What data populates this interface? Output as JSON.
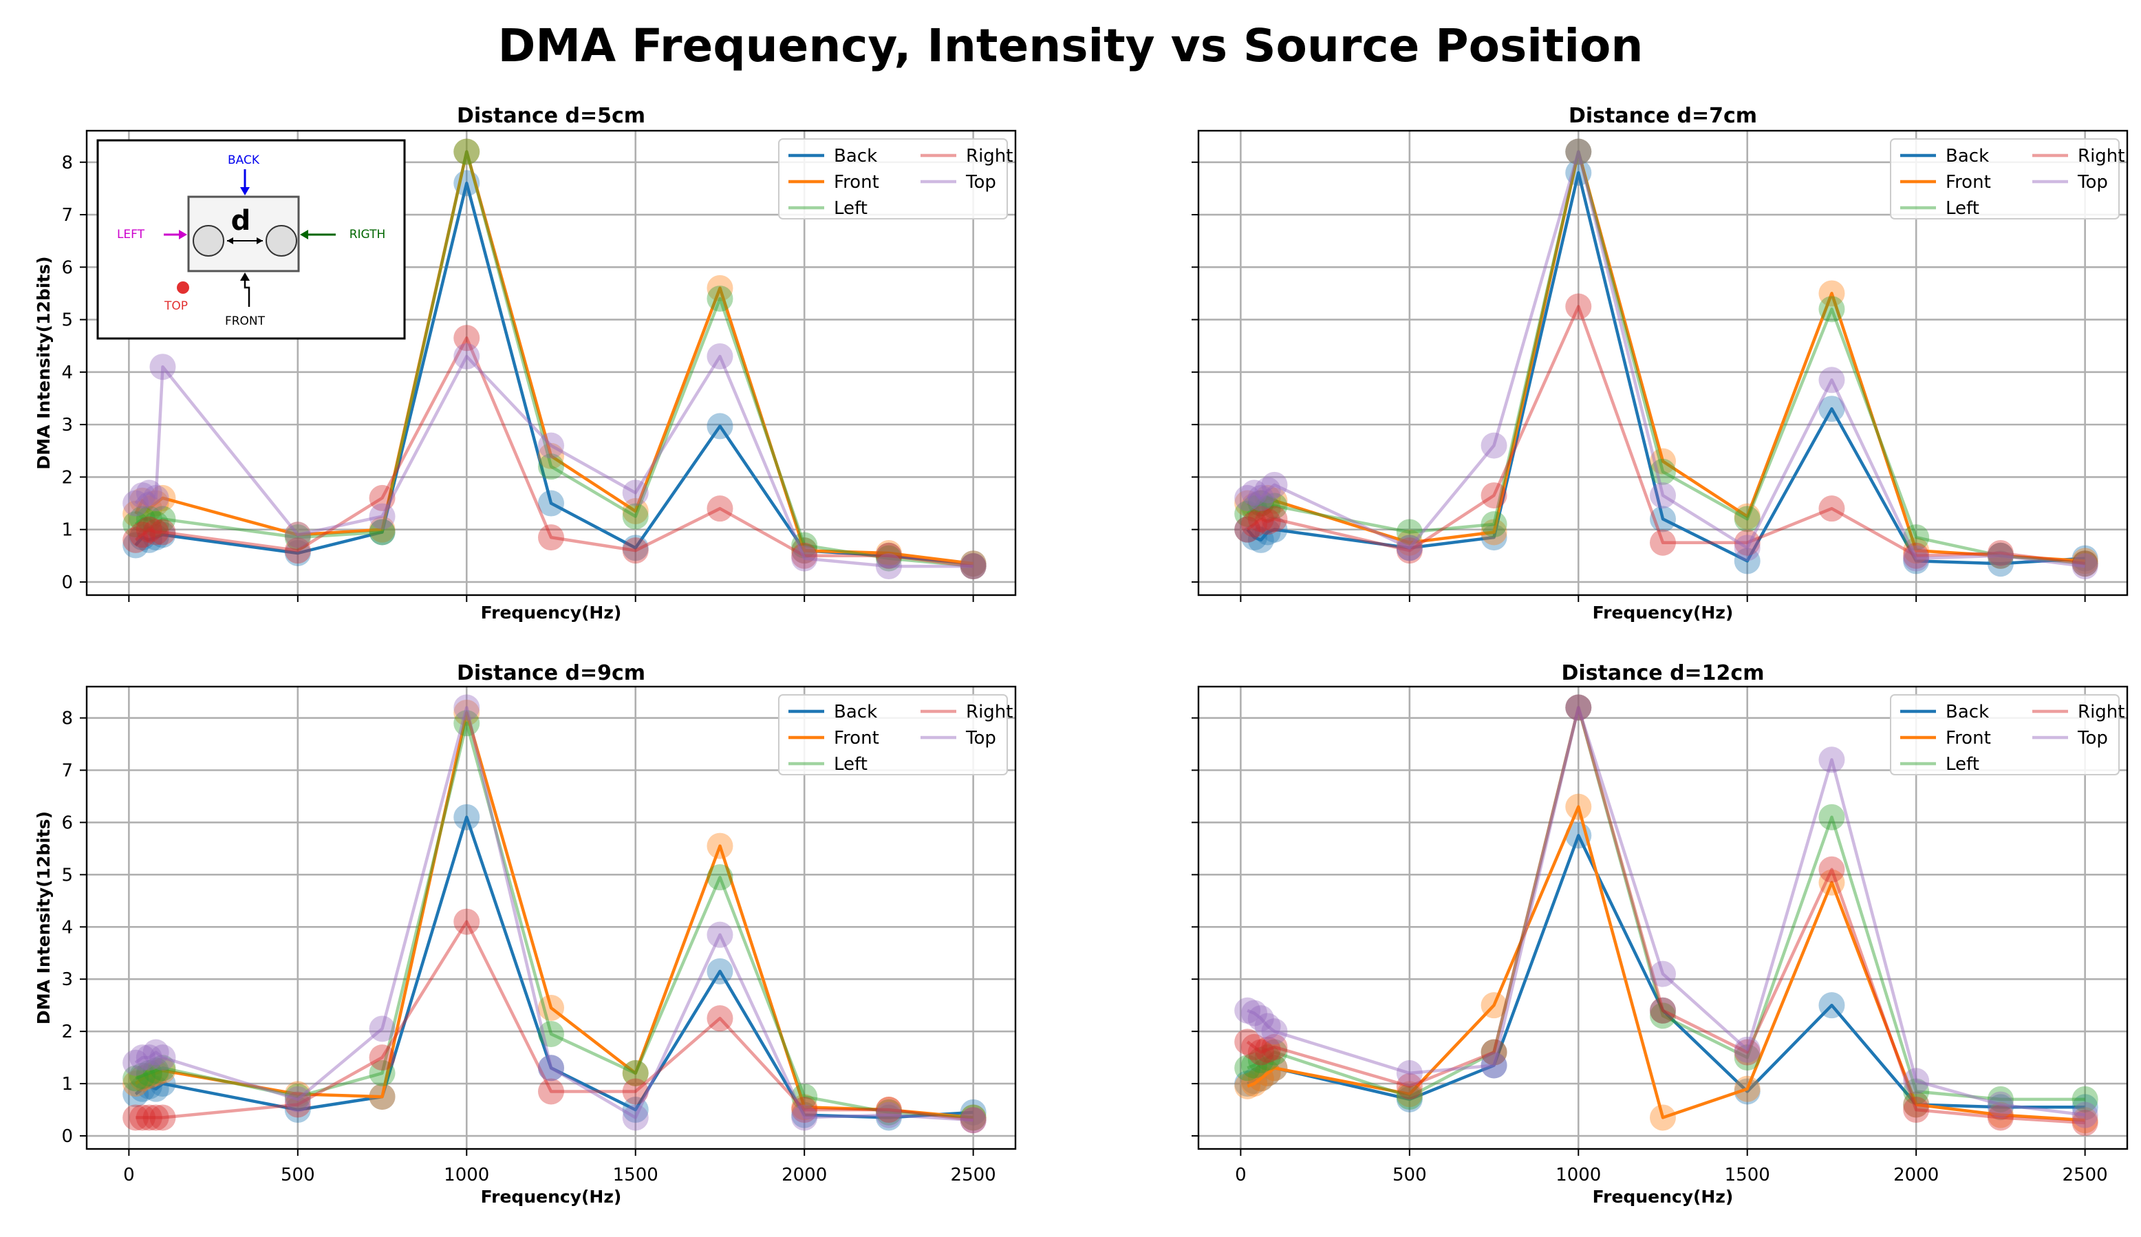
{
  "figure": {
    "title": "DMA Frequency, Intensity vs Source Position"
  },
  "series_colors": {
    "Back": "#1f77b4",
    "Front": "#ff7f0e",
    "Left": "#2ca02c",
    "Right": "#d62728",
    "Top": "#9467bd"
  },
  "chart_data": [
    {
      "type": "line",
      "title": "Distance d=5cm",
      "xlabel": "Frequency(Hz)",
      "ylabel": "DMA Intensity(12bits)",
      "xlim": [
        -125,
        2625
      ],
      "ylim": [
        -0.25,
        8.6
      ],
      "xticks": [
        0,
        500,
        1000,
        1500,
        2000,
        2500
      ],
      "yticks": [
        0,
        1,
        2,
        3,
        4,
        5,
        6,
        7,
        8
      ],
      "x": [
        20,
        40,
        60,
        80,
        100,
        500,
        750,
        1000,
        1250,
        1500,
        1750,
        2000,
        2250,
        2500
      ],
      "series": [
        {
          "name": "Back",
          "values": [
            0.7,
            0.85,
            0.8,
            0.85,
            0.9,
            0.55,
            0.95,
            7.6,
            1.5,
            0.65,
            2.97,
            0.6,
            0.5,
            0.35
          ]
        },
        {
          "name": "Front",
          "values": [
            1.3,
            1.55,
            1.4,
            1.5,
            1.6,
            0.9,
            1.0,
            8.2,
            2.4,
            1.35,
            5.6,
            0.6,
            0.55,
            0.35
          ]
        },
        {
          "name": "Left",
          "values": [
            1.1,
            1.2,
            1.2,
            1.1,
            1.2,
            0.85,
            0.95,
            8.2,
            2.2,
            1.25,
            5.4,
            0.7,
            0.45,
            0.3
          ]
        },
        {
          "name": "Right",
          "values": [
            0.8,
            0.9,
            1.0,
            0.95,
            0.95,
            0.6,
            1.6,
            4.65,
            0.85,
            0.6,
            1.4,
            0.5,
            0.5,
            0.3
          ]
        },
        {
          "name": "Top",
          "values": [
            1.5,
            1.65,
            1.7,
            1.6,
            4.1,
            0.9,
            1.25,
            4.3,
            2.6,
            1.7,
            4.3,
            0.45,
            0.3,
            0.3
          ]
        }
      ],
      "legend": {
        "location": "top-right",
        "columns": 2
      },
      "grid": true,
      "inset": {
        "labels": {
          "back": "BACK",
          "left": "LEFT",
          "right": "RIGTH",
          "top": "TOP",
          "front": "FRONT",
          "distance": "d"
        }
      }
    },
    {
      "type": "line",
      "title": "Distance d=7cm",
      "xlabel": "Frequency(Hz)",
      "ylabel": "",
      "xlim": [
        -125,
        2625
      ],
      "ylim": [
        -0.25,
        8.6
      ],
      "xticks": [
        0,
        500,
        1000,
        1500,
        2000,
        2500
      ],
      "yticks": [
        0,
        1,
        2,
        3,
        4,
        5,
        6,
        7,
        8
      ],
      "x": [
        20,
        40,
        60,
        80,
        100,
        500,
        750,
        1000,
        1250,
        1500,
        1750,
        2000,
        2250,
        2500
      ],
      "series": [
        {
          "name": "Back",
          "values": [
            1.0,
            0.85,
            0.8,
            0.95,
            1.0,
            0.65,
            0.85,
            7.8,
            1.2,
            0.4,
            3.3,
            0.4,
            0.35,
            0.45
          ]
        },
        {
          "name": "Front",
          "values": [
            1.5,
            1.45,
            1.5,
            1.6,
            1.55,
            0.75,
            0.95,
            8.2,
            2.3,
            1.25,
            5.5,
            0.6,
            0.5,
            0.4
          ]
        },
        {
          "name": "Left",
          "values": [
            1.3,
            1.4,
            1.5,
            1.4,
            1.45,
            0.95,
            1.1,
            8.2,
            2.1,
            1.2,
            5.2,
            0.85,
            0.5,
            0.35
          ]
        },
        {
          "name": "Right",
          "values": [
            1.0,
            1.1,
            1.2,
            1.15,
            1.2,
            0.6,
            1.65,
            5.25,
            0.75,
            0.75,
            1.4,
            0.5,
            0.55,
            0.35
          ]
        },
        {
          "name": "Top",
          "values": [
            1.6,
            1.7,
            1.6,
            1.75,
            1.85,
            0.65,
            2.6,
            8.2,
            1.65,
            0.65,
            3.85,
            0.45,
            0.5,
            0.3
          ]
        }
      ],
      "legend": {
        "location": "top-right",
        "columns": 2
      },
      "grid": true
    },
    {
      "type": "line",
      "title": "Distance d=9cm",
      "xlabel": "Frequency(Hz)",
      "ylabel": "DMA Intensity(12bits)",
      "xlim": [
        -125,
        2625
      ],
      "ylim": [
        -0.25,
        8.6
      ],
      "xticks": [
        0,
        500,
        1000,
        1500,
        2000,
        2500
      ],
      "yticks": [
        0,
        1,
        2,
        3,
        4,
        5,
        6,
        7,
        8
      ],
      "x": [
        20,
        40,
        60,
        80,
        100,
        500,
        750,
        1000,
        1250,
        1500,
        1750,
        2000,
        2250,
        2500
      ],
      "series": [
        {
          "name": "Back",
          "values": [
            0.8,
            0.9,
            0.95,
            0.9,
            1.0,
            0.5,
            0.75,
            6.1,
            1.3,
            0.5,
            3.15,
            0.4,
            0.35,
            0.45
          ]
        },
        {
          "name": "Front",
          "values": [
            1.0,
            1.1,
            1.15,
            1.2,
            1.25,
            0.8,
            0.75,
            8.1,
            2.45,
            1.2,
            5.55,
            0.55,
            0.5,
            0.35
          ]
        },
        {
          "name": "Left",
          "values": [
            1.1,
            1.15,
            1.2,
            1.25,
            1.3,
            0.75,
            1.2,
            7.9,
            1.95,
            1.2,
            4.95,
            0.75,
            0.45,
            0.35
          ]
        },
        {
          "name": "Right",
          "values": [
            0.35,
            0.35,
            0.35,
            0.35,
            0.35,
            0.6,
            1.5,
            4.1,
            0.85,
            0.85,
            2.25,
            0.5,
            0.5,
            0.3
          ]
        },
        {
          "name": "Top",
          "values": [
            1.4,
            1.5,
            1.5,
            1.6,
            1.5,
            0.7,
            2.05,
            8.2,
            1.3,
            0.35,
            3.85,
            0.35,
            0.4,
            0.3
          ]
        }
      ],
      "legend": {
        "location": "top-right",
        "columns": 2
      },
      "grid": true
    },
    {
      "type": "line",
      "title": "Distance d=12cm",
      "xlabel": "Frequency(Hz)",
      "ylabel": "",
      "xlim": [
        -125,
        2625
      ],
      "ylim": [
        -0.25,
        8.6
      ],
      "xticks": [
        0,
        500,
        1000,
        1500,
        2000,
        2500
      ],
      "yticks": [
        0,
        1,
        2,
        3,
        4,
        5,
        6,
        7,
        8
      ],
      "x": [
        20,
        40,
        60,
        80,
        100,
        500,
        750,
        1000,
        1250,
        1500,
        1750,
        2000,
        2250,
        2500
      ],
      "series": [
        {
          "name": "Back",
          "values": [
            1.0,
            1.05,
            1.1,
            1.2,
            1.3,
            0.7,
            1.35,
            5.75,
            2.4,
            0.85,
            2.5,
            0.6,
            0.55,
            0.55
          ]
        },
        {
          "name": "Front",
          "values": [
            0.95,
            1.0,
            1.1,
            1.2,
            1.3,
            0.8,
            2.5,
            6.3,
            0.35,
            0.9,
            4.85,
            0.6,
            0.4,
            0.3
          ]
        },
        {
          "name": "Left",
          "values": [
            1.3,
            1.35,
            1.45,
            1.5,
            1.6,
            0.75,
            1.6,
            8.2,
            2.3,
            1.5,
            6.1,
            0.85,
            0.7,
            0.7
          ]
        },
        {
          "name": "Right",
          "values": [
            1.8,
            1.7,
            1.6,
            1.65,
            1.7,
            0.95,
            1.6,
            8.2,
            2.4,
            1.6,
            5.1,
            0.5,
            0.35,
            0.25
          ]
        },
        {
          "name": "Top",
          "values": [
            2.4,
            2.35,
            2.25,
            2.1,
            2.0,
            1.2,
            1.35,
            8.2,
            3.1,
            1.65,
            7.2,
            1.05,
            0.6,
            0.4
          ]
        }
      ],
      "legend": {
        "location": "top-right",
        "columns": 2
      },
      "grid": true
    }
  ]
}
